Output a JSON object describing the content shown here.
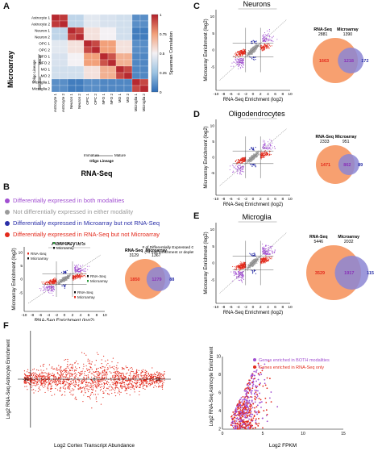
{
  "panels": {
    "A": "A",
    "B": "B",
    "C": "C",
    "D": "D",
    "E": "E",
    "F": "F"
  },
  "colors": {
    "both": "#a14fd1",
    "neither": "#9a9a9a",
    "micro_only": "#2a2fa8",
    "rna_only": "#e32a1c",
    "venn_rna": "#f7a070",
    "venn_micro": "#8c86d4",
    "heat_high": "#b21f2a",
    "heat_low": "#2c6bb5"
  },
  "panelA": {
    "ylabel": "Microarray",
    "xlabel": "RNA-Seq",
    "row_labels": [
      "Astrocyte 1",
      "Astrocyte 2",
      "Neuron 1",
      "Neuron 2",
      "OPC 1",
      "OPC 2",
      "NFO 1",
      "NFO 2",
      "MO 1",
      "MO 2",
      "Microglia 1",
      "Microglia 2"
    ],
    "col_labels": [
      "Astrocyte 1",
      "Astrocyte 2",
      "Neuron 1",
      "Neuron 2",
      "OPC 1",
      "OPC 2",
      "NFO 1",
      "NFO 2",
      "MO 1",
      "MO 2",
      "Microglia 1",
      "Microglia 2"
    ],
    "oligo_side_label": "Oligo Lineage",
    "immature": "Immature",
    "mature": "Mature",
    "oligo_bottom_label": "Oligo Lineage",
    "colorbar_title": "Spearman Correlation",
    "colorbar_ticks": [
      "1",
      "0.75",
      "0.5",
      "0.25",
      "0"
    ],
    "matrix": [
      [
        0.98,
        0.95,
        0.35,
        0.35,
        0.45,
        0.45,
        0.42,
        0.42,
        0.4,
        0.4,
        0.1,
        0.1
      ],
      [
        0.95,
        0.98,
        0.35,
        0.35,
        0.45,
        0.45,
        0.42,
        0.42,
        0.4,
        0.4,
        0.1,
        0.1
      ],
      [
        0.35,
        0.35,
        0.98,
        0.92,
        0.55,
        0.55,
        0.5,
        0.5,
        0.4,
        0.4,
        0.05,
        0.05
      ],
      [
        0.35,
        0.35,
        0.92,
        0.98,
        0.55,
        0.55,
        0.5,
        0.5,
        0.4,
        0.4,
        0.05,
        0.05
      ],
      [
        0.45,
        0.45,
        0.55,
        0.55,
        0.98,
        0.92,
        0.75,
        0.75,
        0.55,
        0.55,
        0.1,
        0.1
      ],
      [
        0.45,
        0.45,
        0.55,
        0.55,
        0.92,
        0.98,
        0.75,
        0.75,
        0.55,
        0.55,
        0.1,
        0.1
      ],
      [
        0.42,
        0.42,
        0.5,
        0.5,
        0.75,
        0.75,
        0.98,
        0.9,
        0.7,
        0.7,
        0.08,
        0.08
      ],
      [
        0.42,
        0.42,
        0.5,
        0.5,
        0.75,
        0.75,
        0.9,
        0.98,
        0.7,
        0.7,
        0.08,
        0.08
      ],
      [
        0.4,
        0.4,
        0.4,
        0.4,
        0.55,
        0.55,
        0.7,
        0.7,
        0.98,
        0.92,
        0.08,
        0.08
      ],
      [
        0.4,
        0.4,
        0.4,
        0.4,
        0.55,
        0.55,
        0.7,
        0.7,
        0.92,
        0.98,
        0.08,
        0.08
      ],
      [
        0.1,
        0.1,
        0.05,
        0.05,
        0.1,
        0.1,
        0.08,
        0.08,
        0.08,
        0.08,
        0.98,
        0.92
      ],
      [
        0.1,
        0.1,
        0.05,
        0.05,
        0.1,
        0.1,
        0.08,
        0.08,
        0.08,
        0.08,
        0.92,
        0.98
      ]
    ]
  },
  "legendB": [
    {
      "text": "Differentially expressed in both modalities",
      "color": "both"
    },
    {
      "text": "Not differentially expressed in either modality",
      "color": "neither"
    },
    {
      "text": "Differentially expressed in Microarray but not RNA-Seq",
      "color": "micro_only"
    },
    {
      "text": "Differentially expressed in RNA-Seq but not Microarray",
      "color": "rna_only"
    }
  ],
  "scatter": {
    "xlabel": "RNA-Seq Enrichment (log2)",
    "ylabel": "Microarray Enrichment (log2)",
    "xticks": [
      "-10",
      "-8",
      "-6",
      "-4",
      "-2",
      "0",
      "2",
      "4",
      "6",
      "8",
      "10"
    ],
    "yticks": [
      "10",
      "5",
      "0",
      "-5"
    ],
    "venn_rna_label": "RNA-Seq",
    "venn_micro_label": "Microarray"
  },
  "astro": {
    "title": "Astrocytes",
    "venn": {
      "rna_total": "3129",
      "micro_total": "1367",
      "rna_only": "1850",
      "both": "1279",
      "micro_only": "88"
    },
    "venn_header": "# of Differentially Expressed Genes",
    "venn_subheader": "(>4 fold enrichment or depletion)",
    "ann1": [
      "RNA-Seq",
      "Microarray"
    ],
    "ann2": [
      "RNA-Seq",
      "Microarray"
    ],
    "ann3": [
      "RNA-Seq",
      "Microarray"
    ],
    "ann4": [
      "RNA-Seq",
      "Microarray"
    ]
  },
  "neurons": {
    "title": "Neurons",
    "venn": {
      "rna_total": "2881",
      "micro_total": "1390",
      "rna_only": "1663",
      "both": "1218",
      "micro_only": "172"
    }
  },
  "oligo": {
    "title": "Oligodendrocytes",
    "venn": {
      "rna_total": "2333",
      "micro_total": "951",
      "rna_only": "1471",
      "both": "862",
      "micro_only": "89"
    }
  },
  "microglia": {
    "title": "Microglia",
    "venn": {
      "rna_total": "5446",
      "micro_total": "2032",
      "rna_only": "3529",
      "both": "1917",
      "micro_only": "115"
    }
  },
  "panelF": {
    "left_ylabel": "Log2 RNA-Seq  Astrocyte Enrichment",
    "left_xlabel": "Log2 Cortex Transcript Abundance",
    "left_xticks": [
      "-10",
      "0",
      "10"
    ],
    "right_ylabel": "Log2 RNA-Seq  Astrocyte Enrichment",
    "right_xlabel": "Log2 FPKM",
    "right_xticks": [
      "0",
      "5",
      "10",
      "15"
    ],
    "right_yticks": [
      "2",
      "4",
      "6",
      "8",
      "10"
    ],
    "legend": [
      {
        "text": "Genes enriched in BOTH modalities",
        "color": "both"
      },
      {
        "text": "Genes enriched in RNA-Seq only",
        "color": "rna_only"
      }
    ]
  }
}
